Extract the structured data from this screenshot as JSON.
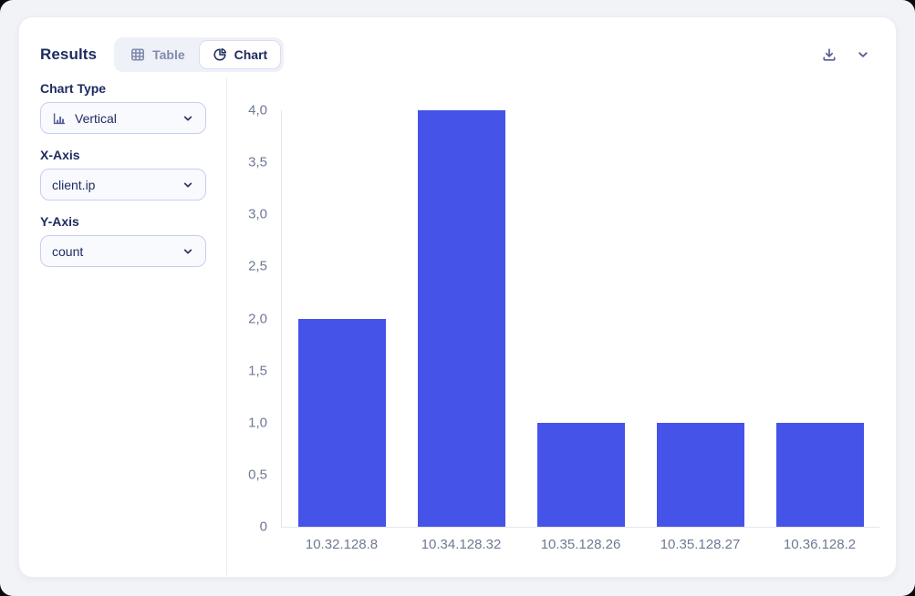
{
  "header": {
    "title": "Results",
    "tabs": [
      {
        "label": "Table",
        "icon": "table-icon",
        "active": false
      },
      {
        "label": "Chart",
        "icon": "pie-chart-icon",
        "active": true
      }
    ],
    "actions": [
      {
        "icon": "download-icon"
      },
      {
        "icon": "chevron-down-icon"
      }
    ]
  },
  "sidebar": {
    "fields": [
      {
        "label": "Chart Type",
        "value": "Vertical",
        "icon": "bar-chart-icon"
      },
      {
        "label": "X-Axis",
        "value": "client.ip"
      },
      {
        "label": "Y-Axis",
        "value": "count"
      }
    ]
  },
  "chart_data": {
    "type": "bar",
    "categories": [
      "10.32.128.8",
      "10.34.128.32",
      "10.35.128.26",
      "10.35.128.27",
      "10.36.128.2"
    ],
    "values": [
      2,
      4,
      1,
      1,
      1
    ],
    "x_field": "client.ip",
    "y_field": "count",
    "ylim": [
      0,
      4
    ],
    "y_ticks": [
      {
        "label": "4,0",
        "value": 4
      },
      {
        "label": "3,5",
        "value": 3.5
      },
      {
        "label": "3,0",
        "value": 3
      },
      {
        "label": "2,5",
        "value": 2.5
      },
      {
        "label": "2,0",
        "value": 2
      },
      {
        "label": "1,5",
        "value": 1.5
      },
      {
        "label": "1,0",
        "value": 1
      },
      {
        "label": "0,5",
        "value": 0.5
      },
      {
        "label": "0",
        "value": 0
      }
    ],
    "grid": false,
    "legend": false,
    "bar_color": "#4553e8"
  },
  "colors": {
    "bar": "#4553e8",
    "navy_text": "#1c2a5e",
    "muted_text": "#6e7994",
    "card_bg": "#ffffff",
    "page_bg": "#f2f3f7",
    "select_border": "#c8cdf0",
    "divider": "#e9ebf3"
  }
}
